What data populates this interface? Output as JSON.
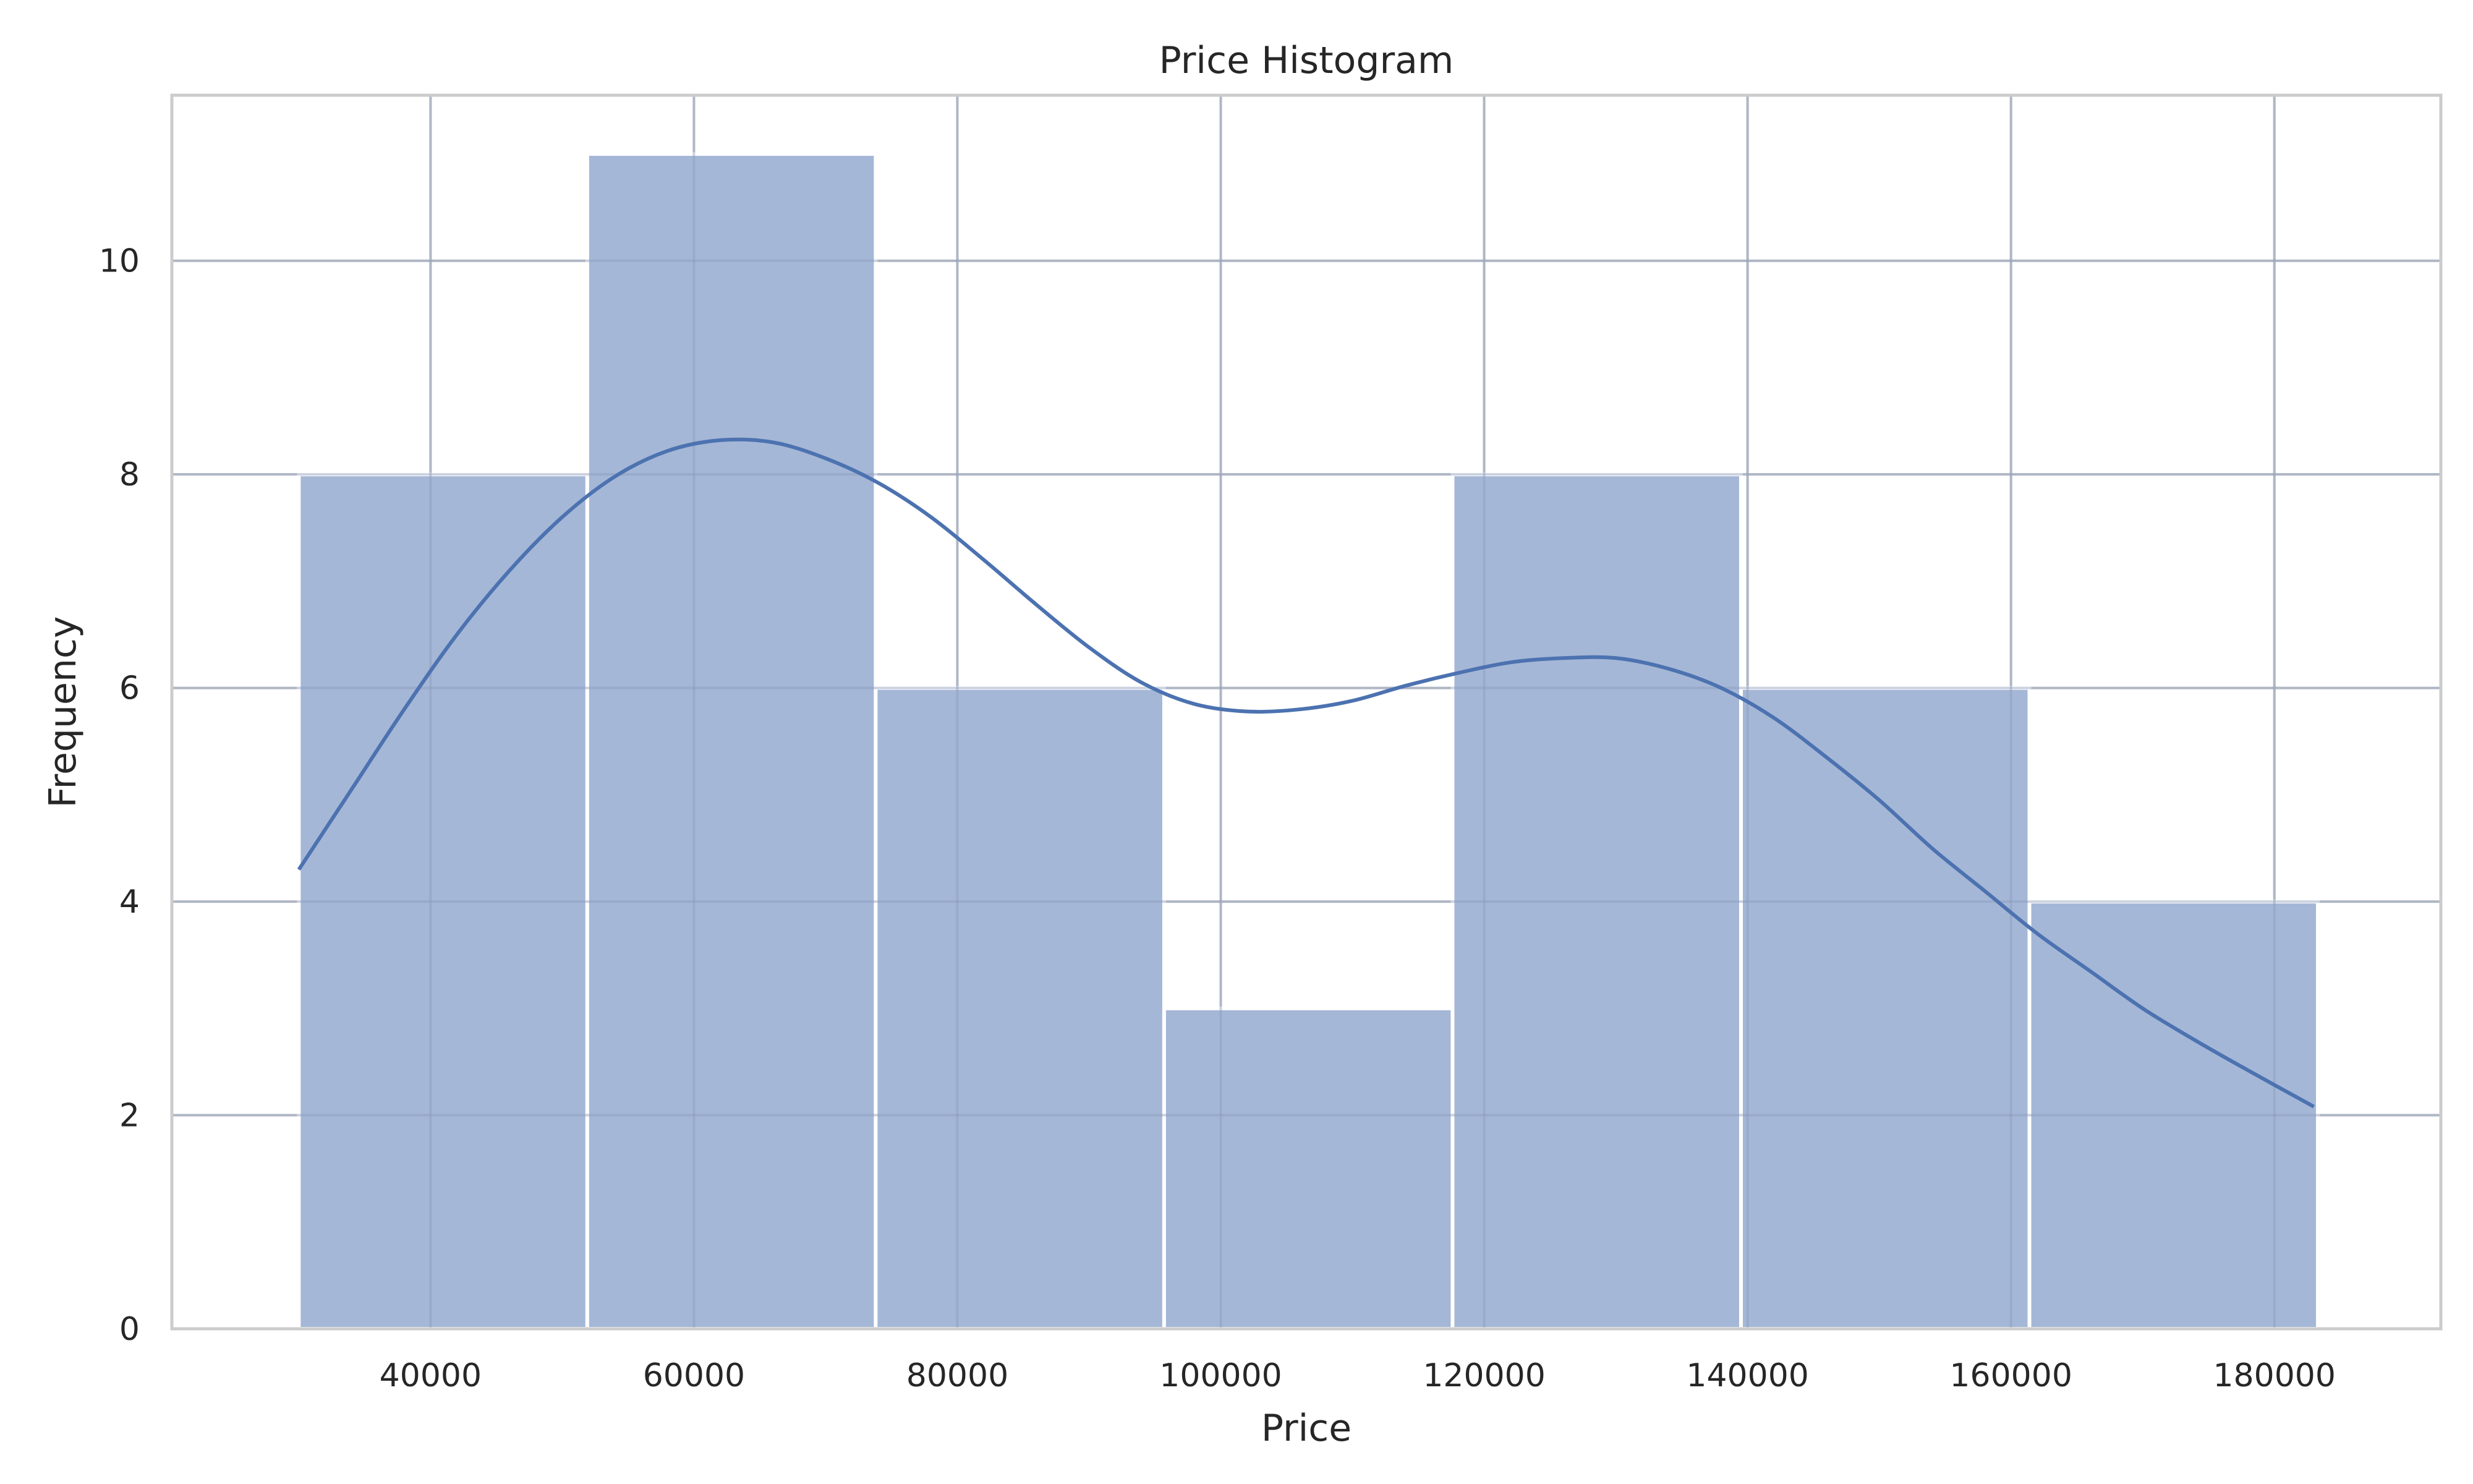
{
  "chart_data": {
    "type": "bar",
    "title": "Price Histogram",
    "xlabel": "Price",
    "ylabel": "Frequency",
    "xlim": [
      20360,
      192640
    ],
    "ylim": [
      0,
      11.55
    ],
    "x_ticks": [
      40000,
      60000,
      80000,
      100000,
      120000,
      140000,
      160000,
      180000
    ],
    "y_ticks": [
      0,
      2,
      4,
      6,
      8,
      10
    ],
    "grid": true,
    "legend": "none",
    "bins": [
      {
        "x0": 30000,
        "x1": 51900,
        "count": 8
      },
      {
        "x0": 51900,
        "x1": 73800,
        "count": 11
      },
      {
        "x0": 73800,
        "x1": 95700,
        "count": 6
      },
      {
        "x0": 95700,
        "x1": 117600,
        "count": 3
      },
      {
        "x0": 117600,
        "x1": 139500,
        "count": 8
      },
      {
        "x0": 139500,
        "x1": 161400,
        "count": 6
      },
      {
        "x0": 161400,
        "x1": 183300,
        "count": 4
      }
    ],
    "kde": {
      "x": [
        30000,
        34000,
        38000,
        42000,
        46000,
        50000,
        54000,
        58000,
        62000,
        66000,
        70000,
        74000,
        78000,
        82000,
        86000,
        90000,
        94000,
        98000,
        102000,
        106000,
        110000,
        114000,
        118000,
        122000,
        126000,
        130000,
        134000,
        138000,
        142000,
        146000,
        150000,
        154000,
        158000,
        162000,
        166000,
        170000,
        174000,
        178000,
        183000
      ],
      "y": [
        4.3,
        5.05,
        5.8,
        6.5,
        7.1,
        7.6,
        7.98,
        8.22,
        8.32,
        8.3,
        8.15,
        7.92,
        7.6,
        7.2,
        6.78,
        6.38,
        6.05,
        5.85,
        5.78,
        5.8,
        5.88,
        6.02,
        6.14,
        6.24,
        6.28,
        6.28,
        6.18,
        6.0,
        5.72,
        5.35,
        4.95,
        4.5,
        4.1,
        3.7,
        3.35,
        3.0,
        2.7,
        2.42,
        2.08
      ]
    },
    "colors": {
      "bar_fill": "#a5b7d7",
      "bar_edge": "#ffffff",
      "kde_line": "#4c72b0",
      "grid": "#cccccc",
      "frame": "#cccccc",
      "text": "#262626"
    }
  }
}
